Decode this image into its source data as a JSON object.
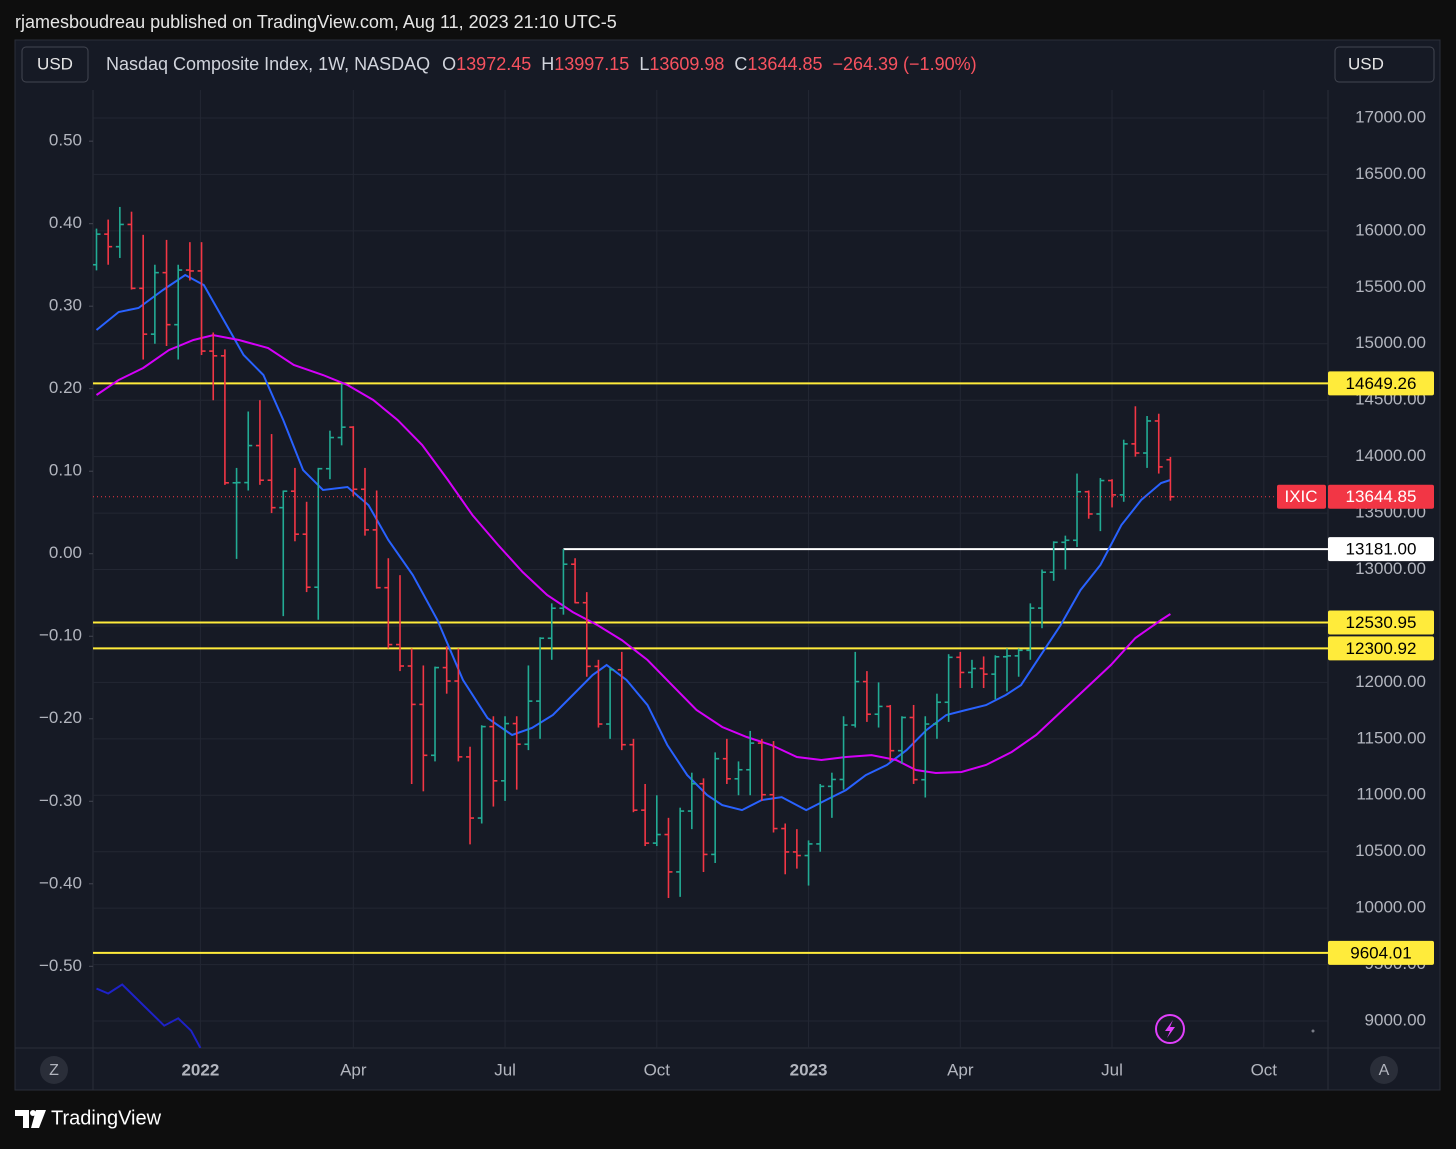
{
  "header": {
    "publisher": "rjamesboudreau published on TradingView.com, Aug 11, 2023 21:10 UTC-5",
    "currency": "USD",
    "right_currency": "USD"
  },
  "chart_data": {
    "type": "ohlc",
    "title": "Nasdaq Composite Index, 1W, NASDAQ",
    "symbol": "IXIC",
    "legend_labels": {
      "open": "O",
      "high": "H",
      "low": "L",
      "close": "C"
    },
    "change": "−264.39 (−1.90%)",
    "up_color": "#22ab94",
    "down_color": "#f23645",
    "open": [
      15700,
      15971,
      15860,
      16057,
      15491,
      15085,
      15630,
      15169,
      15653,
      15645,
      14935,
      14893,
      13768,
      13770,
      14098,
      13791,
      13548,
      13694,
      13313,
      12843,
      13893,
      14169,
      14261,
      13711,
      13351,
      12839,
      12335,
      12145,
      11805,
      11354,
      12131,
      12012,
      11340,
      10798,
      11608,
      11128,
      11635,
      11452,
      11834,
      12391,
      12657,
      13047,
      12706,
      12142,
      11631,
      12112,
      11448,
      10868,
      10576,
      10652,
      10321,
      10860,
      11102,
      10476,
      11324,
      11146,
      11226,
      11462,
      11005,
      10705,
      10498,
      10466,
      10569,
      11079,
      11140,
      11622,
      12007,
      11718,
      11787,
      11395,
      11689,
      11138,
      11631,
      11824,
      12222,
      12088,
      12123,
      12073,
      12227,
      12235,
      12284,
      12658,
      12976,
      13241,
      13259,
      13689,
      13492,
      13788,
      13661,
      14113,
      14032,
      14316,
      13972.45
    ],
    "high": [
      16020,
      16100,
      16212,
      16170,
      15965,
      15700,
      15920,
      15700,
      15900,
      15900,
      15100,
      14950,
      13900,
      14400,
      14500,
      14200,
      13700,
      13900,
      13600,
      13900,
      14230,
      14646,
      14270,
      13900,
      13700,
      13100,
      12950,
      12300,
      12150,
      12140,
      12320,
      12300,
      11430,
      11620,
      11700,
      11700,
      11700,
      12150,
      12400,
      12700,
      13181,
      13100,
      12800,
      12200,
      12130,
      12270,
      11500,
      11100,
      11000,
      10800,
      10890,
      11200,
      11150,
      11380,
      11500,
      11300,
      11570,
      11500,
      11480,
      10750,
      10700,
      10600,
      11100,
      11200,
      11700,
      12270,
      12100,
      12000,
      11800,
      11700,
      11800,
      11700,
      11900,
      12250,
      12270,
      12200,
      12230,
      12240,
      12300,
      12300,
      12700,
      13000,
      13250,
      13300,
      13850,
      13700,
      13810,
      13800,
      14150,
      14446,
      14360,
      14380,
      13997.15
    ],
    "low": [
      15650,
      15700,
      15760,
      15480,
      14860,
      15000,
      14980,
      14860,
      15560,
      14900,
      14500,
      13750,
      13094,
      13700,
      13750,
      13500,
      12587,
      13250,
      12800,
      12555,
      13800,
      14100,
      13650,
      13300,
      12830,
      12300,
      12100,
      11100,
      11035,
      11300,
      11900,
      11300,
      10565,
      10750,
      10900,
      10950,
      11050,
      11400,
      11500,
      12200,
      12600,
      12700,
      12050,
      11600,
      11500,
      11400,
      10850,
      10550,
      10550,
      10090,
      10100,
      10700,
      10320,
      10400,
      11100,
      11000,
      11000,
      10950,
      10670,
      10300,
      10350,
      10200,
      10500,
      10800,
      11050,
      11600,
      11650,
      11600,
      11300,
      11280,
      11100,
      10980,
      11500,
      11650,
      11950,
      11950,
      11950,
      11850,
      11920,
      12050,
      12200,
      12480,
      12900,
      13000,
      13200,
      13450,
      13340,
      13550,
      13600,
      14000,
      13900,
      13850,
      13609.98
    ],
    "close": [
      15971,
      15860,
      16057,
      15491,
      15085,
      15630,
      15169,
      15653,
      15645,
      14935,
      14893,
      13768,
      13770,
      14098,
      13791,
      13548,
      13694,
      13313,
      12843,
      13893,
      14169,
      14261,
      13711,
      13351,
      12839,
      12335,
      12145,
      11805,
      11354,
      12131,
      12012,
      11340,
      10798,
      11608,
      11128,
      11635,
      11452,
      11834,
      12391,
      12657,
      13047,
      12706,
      12142,
      11631,
      12112,
      11448,
      10868,
      10576,
      10652,
      10321,
      10860,
      11102,
      10476,
      11324,
      11146,
      11226,
      11462,
      11005,
      10705,
      10498,
      10466,
      10569,
      11079,
      11140,
      11622,
      12007,
      11718,
      11787,
      11395,
      11689,
      11138,
      11631,
      11824,
      12222,
      12088,
      12123,
      12073,
      12227,
      12235,
      12284,
      12658,
      12976,
      13241,
      13259,
      13689,
      13492,
      13788,
      13661,
      14113,
      14032,
      14316,
      13909,
      13644.85
    ],
    "series": [
      {
        "color": "#2962ff",
        "x": [
          0,
          1.9,
          3.6,
          5.7,
          7.6,
          9.2,
          10.9,
          12.6,
          14.3,
          16.0,
          17.7,
          19.4,
          21.5,
          23.3,
          25.0,
          27.1,
          29.2,
          31.4,
          33.5,
          35.6,
          37.3,
          39.1,
          40.8,
          42.5,
          43.7,
          45.4,
          47.2,
          48.9,
          50.6,
          52.3,
          53.6,
          55.3,
          57.0,
          58.7,
          60.8,
          62.5,
          64.2,
          65.9,
          67.7,
          69.4,
          71.1,
          72.8,
          74.5,
          76.2,
          77.9,
          79.2,
          80.9,
          82.6,
          84.3,
          86.0,
          87.8,
          89.5,
          91.2,
          92.0
        ],
        "values": [
          15122,
          15281,
          15317,
          15476,
          15609,
          15520,
          15210,
          14900,
          14723,
          14324,
          13881,
          13704,
          13731,
          13571,
          13261,
          12951,
          12553,
          12021,
          11684,
          11534,
          11596,
          11711,
          11888,
          12065,
          12154,
          12021,
          11799,
          11445,
          11179,
          11002,
          10913,
          10869,
          10958,
          10984,
          10869,
          10958,
          11046,
          11179,
          11268,
          11400,
          11577,
          11711,
          11755,
          11799,
          11888,
          11976,
          12242,
          12508,
          12818,
          13040,
          13394,
          13616,
          13766,
          13793
        ]
      },
      {
        "color": "#d500f9",
        "x": [
          0,
          1.9,
          4.0,
          6.2,
          8.3,
          10.0,
          12.2,
          14.7,
          16.9,
          19.4,
          21.5,
          23.7,
          25.8,
          27.9,
          30.1,
          32.2,
          34.4,
          36.5,
          38.6,
          40.8,
          42.9,
          45.0,
          47.2,
          49.3,
          51.4,
          53.6,
          55.7,
          57.8,
          60.0,
          62.1,
          64.2,
          66.4,
          68.5,
          70.2,
          71.9,
          74.1,
          76.2,
          78.4,
          80.5,
          82.6,
          84.8,
          86.9,
          89.0,
          91.2,
          92.0
        ],
        "values": [
          14546,
          14679,
          14785,
          14944,
          15033,
          15077,
          15033,
          14962,
          14812,
          14723,
          14635,
          14502,
          14324,
          14103,
          13793,
          13483,
          13217,
          12978,
          12774,
          12623,
          12508,
          12375,
          12198,
          11976,
          11755,
          11605,
          11516,
          11445,
          11339,
          11312,
          11339,
          11356,
          11312,
          11224,
          11197,
          11206,
          11268,
          11383,
          11534,
          11738,
          11950,
          12154,
          12393,
          12553,
          12606
        ]
      },
      {
        "color": "#1e22c8",
        "axis": "y2",
        "x": [
          0,
          1.0,
          2.2,
          4.0,
          5.8,
          7.0,
          8.1,
          8.9
        ],
        "values": [
          -0.527,
          -0.533,
          -0.522,
          -0.547,
          -0.572,
          -0.563,
          -0.578,
          -0.599
        ]
      }
    ],
    "levels": [
      {
        "value": 14649.26,
        "color": "#ffeb3b"
      },
      {
        "value": 13181,
        "label": "13181.00",
        "color": "#ffffff",
        "x_start": 40
      },
      {
        "value": 12530.95,
        "color": "#ffeb3b"
      },
      {
        "value": 12300.92,
        "color": "#ffeb3b"
      },
      {
        "value": 9604.01,
        "color": "#ffeb3b"
      }
    ],
    "last_color": "#f23645",
    "xlim": [
      -0.3,
      105.5
    ],
    "xticks": [
      {
        "value": 8.9,
        "label": "2022"
      },
      {
        "value": 22,
        "label": "Apr"
      },
      {
        "value": 35,
        "label": "Jul"
      },
      {
        "value": 48,
        "label": "Oct"
      },
      {
        "value": 61,
        "label": "2023"
      },
      {
        "value": 74,
        "label": "Apr"
      },
      {
        "value": 87,
        "label": "Jul"
      },
      {
        "value": 100,
        "label": "Oct"
      }
    ],
    "ylim": [
      8761,
      17248
    ],
    "yticks": [
      {
        "value": 17000,
        "label": "17000.00"
      },
      {
        "value": 16500,
        "label": "16500.00"
      },
      {
        "value": 16000,
        "label": "16000.00"
      },
      {
        "value": 15500,
        "label": "15500.00"
      },
      {
        "value": 15000,
        "label": "15000.00"
      },
      {
        "value": 14500,
        "label": "14500.00"
      },
      {
        "value": 14000,
        "label": "14000.00"
      },
      {
        "value": 13500,
        "label": "13500.00"
      },
      {
        "value": 13000,
        "label": "13000.00"
      },
      {
        "value": 12500,
        "label": "12500.00"
      },
      {
        "value": 12000,
        "label": "12000.00"
      },
      {
        "value": 11500,
        "label": "11500.00"
      },
      {
        "value": 11000,
        "label": "11000.00"
      },
      {
        "value": 10500,
        "label": "10500.00"
      },
      {
        "value": 10000,
        "label": "10000.00"
      },
      {
        "value": 9500,
        "label": "9500.00"
      },
      {
        "value": 9000,
        "label": "9000.00"
      }
    ],
    "y2lim": [
      -0.599,
      0.562
    ],
    "y2ticks": [
      {
        "value": 0.5,
        "label": "0.50"
      },
      {
        "value": 0.4,
        "label": "0.40"
      },
      {
        "value": 0.3,
        "label": "0.30"
      },
      {
        "value": 0.2,
        "label": "0.20"
      },
      {
        "value": 0.1,
        "label": "0.10"
      },
      {
        "value": 0,
        "label": "0.00"
      },
      {
        "value": -0.1,
        "label": "−0.10"
      },
      {
        "value": -0.2,
        "label": "−0.20"
      },
      {
        "value": -0.3,
        "label": "−0.30"
      },
      {
        "value": -0.4,
        "label": "−0.40"
      },
      {
        "value": -0.5,
        "label": "−0.50"
      }
    ],
    "grid": true
  },
  "scale_buttons": {
    "left": "Z",
    "right": "A"
  },
  "footer": {
    "brand": "TradingView"
  }
}
